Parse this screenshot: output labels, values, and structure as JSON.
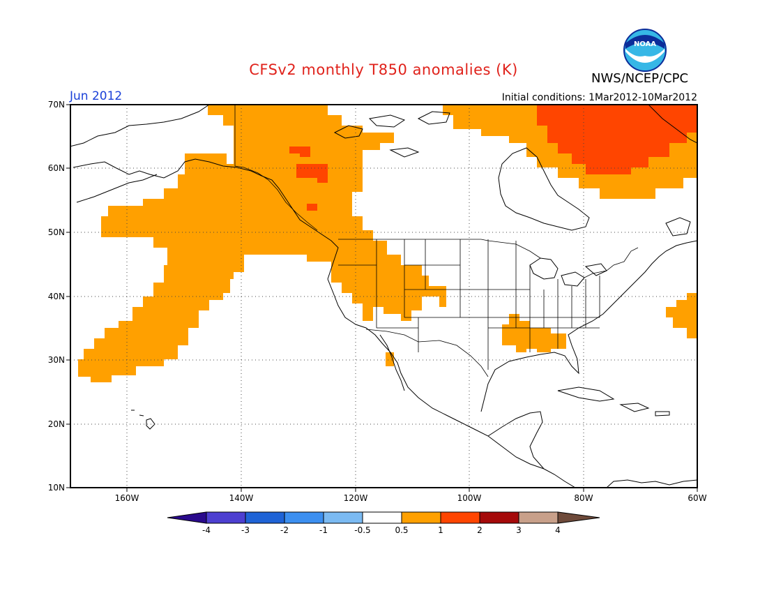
{
  "header": {
    "title": "CFSv2 monthly T850 anomalies (K)",
    "org": "NWS/NCEP/CPC",
    "logo_text": "NOAA",
    "month": "Jun 2012",
    "initial_conditions": "Initial conditions: 1Mar2012-10Mar2012"
  },
  "map": {
    "lat_labels": [
      "70N",
      "60N",
      "50N",
      "40N",
      "30N",
      "20N",
      "10N"
    ],
    "lon_labels": [
      "160W",
      "140W",
      "120W",
      "100W",
      "80W",
      "60W"
    ],
    "lon_range": [
      -171,
      -60
    ],
    "lat_range": [
      10,
      70
    ],
    "grid": "dotted"
  },
  "colorbar": {
    "tick_labels": [
      "-4",
      "-3",
      "-2",
      "-1",
      "-0.5",
      "0.5",
      "1",
      "2",
      "3",
      "4"
    ],
    "colors": [
      "#2a0a8c",
      "#4d3fd0",
      "#1f63d6",
      "#3c8ff0",
      "#7bbaf2",
      "#ffffff",
      "#ffa000",
      "#ff4500",
      "#a50a0a",
      "#c8a08a",
      "#6e4a3a"
    ]
  },
  "anomaly_colors": {
    "0.5-1": "#ffa000",
    "1-2": "#ff4500"
  }
}
